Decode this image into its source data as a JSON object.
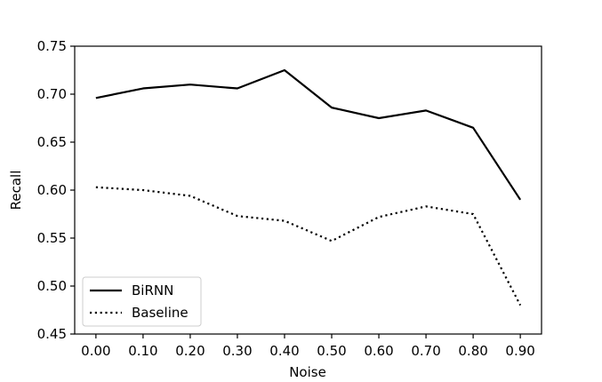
{
  "chart_data": {
    "type": "line",
    "xlabel": "Noise",
    "ylabel": "Recall",
    "x": [
      0.0,
      0.1,
      0.2,
      0.3,
      0.4,
      0.5,
      0.6,
      0.7,
      0.8,
      0.9
    ],
    "x_tick_labels": [
      "0.00",
      "0.10",
      "0.20",
      "0.30",
      "0.40",
      "0.50",
      "0.60",
      "0.70",
      "0.80",
      "0.90"
    ],
    "y_ticks": [
      0.45,
      0.5,
      0.55,
      0.6,
      0.65,
      0.7,
      0.75
    ],
    "y_tick_labels": [
      "0.45",
      "0.50",
      "0.55",
      "0.60",
      "0.65",
      "0.70",
      "0.75"
    ],
    "xlim": [
      -0.045,
      0.945
    ],
    "ylim": [
      0.45,
      0.75
    ],
    "grid": false,
    "legend_position": "lower-left",
    "series": [
      {
        "name": "BiRNN",
        "style": "solid",
        "color": "#000000",
        "values": [
          0.696,
          0.706,
          0.71,
          0.706,
          0.725,
          0.686,
          0.675,
          0.683,
          0.665,
          0.59
        ]
      },
      {
        "name": "Baseline",
        "style": "dotted",
        "color": "#000000",
        "values": [
          0.603,
          0.6,
          0.594,
          0.573,
          0.568,
          0.547,
          0.572,
          0.583,
          0.575,
          0.48
        ]
      }
    ]
  }
}
